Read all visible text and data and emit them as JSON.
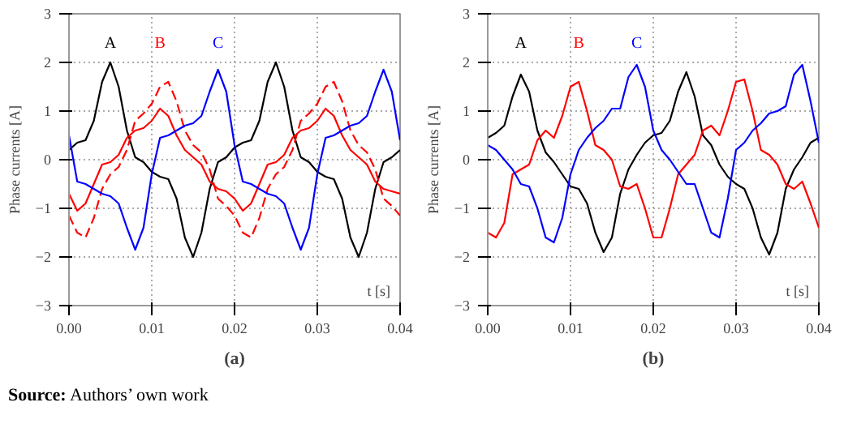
{
  "chart_data": [
    {
      "type": "line",
      "title": "(a)",
      "xlabel": "t [s]",
      "ylabel": "Phase currents [A]",
      "annotations": [
        "Source: Authors’ own work"
      ],
      "grid": true,
      "line_style": "solid",
      "xlim": [
        0,
        0.04
      ],
      "ylim": [
        -3,
        3
      ],
      "xticks": [
        {
          "value": 0,
          "label": "0.00"
        },
        {
          "value": 0.01,
          "label": "0.01"
        },
        {
          "value": 0.02,
          "label": "0.02"
        },
        {
          "value": 0.03,
          "label": "0.03"
        },
        {
          "value": 0.04,
          "label": "0.04"
        }
      ],
      "yticks": [
        {
          "value": -3,
          "label": "−3"
        },
        {
          "value": -2,
          "label": "−2"
        },
        {
          "value": -1,
          "label": "−1"
        },
        0,
        1,
        2,
        3
      ],
      "x": [
        0,
        0.001,
        0.002,
        0.003,
        0.004,
        0.005,
        0.006,
        0.007,
        0.008,
        0.009,
        0.01,
        0.011,
        0.012,
        0.013,
        0.014,
        0.015,
        0.016,
        0.017,
        0.018,
        0.019,
        0.02,
        0.021,
        0.022,
        0.023,
        0.024,
        0.025,
        0.026,
        0.027,
        0.028,
        0.029,
        0.03,
        0.031,
        0.032,
        0.033,
        0.034,
        0.035,
        0.036,
        0.037,
        0.038,
        0.039,
        0.04
      ],
      "series": [
        {
          "name": "A",
          "color": "#000000",
          "values": [
            0.2,
            0.35,
            0.4,
            0.8,
            1.6,
            2.0,
            1.5,
            0.6,
            0.05,
            -0.05,
            -0.25,
            -0.35,
            -0.4,
            -0.8,
            -1.6,
            -2.0,
            -1.5,
            -0.6,
            -0.05,
            0.05,
            0.25,
            0.35,
            0.4,
            0.8,
            1.6,
            2.0,
            1.5,
            0.6,
            0.05,
            -0.05,
            -0.25,
            -0.35,
            -0.4,
            -0.8,
            -1.6,
            -2.0,
            -1.5,
            -0.6,
            -0.05,
            0.05,
            0.2
          ]
        },
        {
          "name": "B",
          "color": "#ff0000",
          "values": [
            -0.7,
            -1.05,
            -0.9,
            -0.5,
            -0.1,
            -0.05,
            0.1,
            0.45,
            0.6,
            0.65,
            0.8,
            1.05,
            0.9,
            0.5,
            0.2,
            0.05,
            -0.1,
            -0.45,
            -0.6,
            -0.65,
            -0.8,
            -1.05,
            -0.9,
            -0.5,
            -0.1,
            -0.05,
            0.1,
            0.45,
            0.6,
            0.65,
            0.8,
            1.05,
            0.9,
            0.5,
            0.2,
            0.05,
            -0.1,
            -0.45,
            -0.6,
            -0.65,
            -0.7
          ]
        },
        {
          "color": "#ff0000",
          "line_style": "dashed",
          "values": [
            -1.15,
            -1.5,
            -1.6,
            -1.2,
            -0.6,
            -0.3,
            -0.15,
            0.2,
            0.8,
            0.95,
            1.15,
            1.5,
            1.6,
            1.2,
            0.6,
            0.3,
            0.15,
            -0.2,
            -0.8,
            -0.95,
            -1.15,
            -1.5,
            -1.6,
            -1.2,
            -0.6,
            -0.3,
            -0.15,
            0.2,
            0.8,
            0.95,
            1.15,
            1.5,
            1.6,
            1.2,
            0.6,
            0.3,
            0.15,
            -0.2,
            -0.8,
            -0.95,
            -1.15
          ]
        },
        {
          "name": "C",
          "color": "#0000ff",
          "values": [
            0.5,
            -0.45,
            -0.5,
            -0.6,
            -0.7,
            -0.75,
            -0.9,
            -1.4,
            -1.85,
            -1.4,
            -0.3,
            0.45,
            0.5,
            0.6,
            0.7,
            0.75,
            0.9,
            1.4,
            1.85,
            1.4,
            0.3,
            -0.45,
            -0.5,
            -0.6,
            -0.7,
            -0.75,
            -0.9,
            -1.4,
            -1.85,
            -1.4,
            -0.3,
            0.45,
            0.5,
            0.6,
            0.7,
            0.75,
            0.9,
            1.4,
            1.85,
            1.4,
            0.4
          ]
        }
      ]
    },
    {
      "type": "line",
      "title": "(b)",
      "xlabel": "t [s]",
      "ylabel": "Phase currents [A]",
      "grid": true,
      "line_style": "solid",
      "xlim": [
        0,
        0.04
      ],
      "ylim": [
        -3,
        3
      ],
      "xticks": [
        {
          "value": 0,
          "label": "0.00"
        },
        {
          "value": 0.01,
          "label": "0.01"
        },
        {
          "value": 0.02,
          "label": "0.02"
        },
        {
          "value": 0.03,
          "label": "0.03"
        },
        {
          "value": 0.04,
          "label": "0.04"
        }
      ],
      "yticks": [
        {
          "value": -3,
          "label": "−3"
        },
        {
          "value": -2,
          "label": "−2"
        },
        {
          "value": -1,
          "label": "−1"
        },
        0,
        1,
        2,
        3
      ],
      "x": [
        0,
        0.001,
        0.002,
        0.003,
        0.004,
        0.005,
        0.006,
        0.007,
        0.008,
        0.009,
        0.01,
        0.011,
        0.012,
        0.013,
        0.014,
        0.015,
        0.016,
        0.017,
        0.018,
        0.019,
        0.02,
        0.021,
        0.022,
        0.023,
        0.024,
        0.025,
        0.026,
        0.027,
        0.028,
        0.029,
        0.03,
        0.031,
        0.032,
        0.033,
        0.034,
        0.035,
        0.036,
        0.037,
        0.038,
        0.039,
        0.04
      ],
      "series": [
        {
          "name": "A",
          "color": "#000000",
          "values": [
            0.45,
            0.55,
            0.7,
            1.3,
            1.75,
            1.4,
            0.6,
            0.15,
            -0.05,
            -0.3,
            -0.55,
            -0.6,
            -0.9,
            -1.5,
            -1.9,
            -1.6,
            -0.7,
            -0.2,
            0.1,
            0.35,
            0.5,
            0.55,
            0.8,
            1.4,
            1.8,
            1.3,
            0.5,
            0.3,
            -0.1,
            -0.35,
            -0.5,
            -0.6,
            -1.0,
            -1.6,
            -1.95,
            -1.5,
            -0.6,
            -0.2,
            0.05,
            0.35,
            0.45
          ]
        },
        {
          "name": "B",
          "color": "#ff0000",
          "values": [
            -1.5,
            -1.6,
            -1.3,
            -0.3,
            -0.2,
            -0.1,
            0.4,
            0.6,
            0.45,
            0.9,
            1.5,
            1.6,
            1.0,
            0.3,
            0.2,
            0.0,
            -0.55,
            -0.6,
            -0.5,
            -1.0,
            -1.6,
            -1.6,
            -1.0,
            -0.3,
            -0.1,
            0.1,
            0.6,
            0.7,
            0.5,
            1.0,
            1.6,
            1.65,
            1.0,
            0.2,
            0.1,
            -0.1,
            -0.5,
            -0.6,
            -0.45,
            -0.9,
            -1.4
          ]
        },
        {
          "name": "C",
          "color": "#0000ff",
          "values": [
            0.3,
            0.2,
            0.0,
            -0.2,
            -0.5,
            -0.55,
            -1.0,
            -1.6,
            -1.7,
            -1.2,
            -0.3,
            0.2,
            0.45,
            0.65,
            0.8,
            1.05,
            1.05,
            1.7,
            1.95,
            1.5,
            0.6,
            0.2,
            0.0,
            -0.25,
            -0.5,
            -0.5,
            -1.0,
            -1.5,
            -1.6,
            -0.8,
            0.2,
            0.35,
            0.6,
            0.75,
            0.95,
            1.0,
            1.1,
            1.75,
            1.95,
            1.2,
            0.35
          ]
        }
      ]
    }
  ]
}
